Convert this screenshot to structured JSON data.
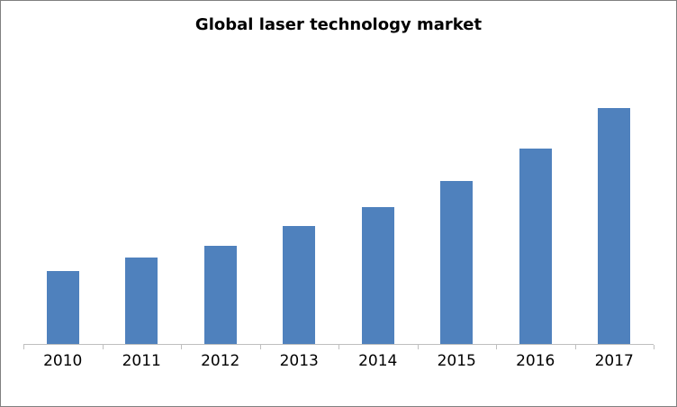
{
  "colors": {
    "bar": "#4F81BD",
    "axis": "#BFBFBF",
    "frame_border": "#808080",
    "title_text": "#000000"
  },
  "chart_data": {
    "type": "bar",
    "title": "Global laser technology market",
    "categories": [
      "2010",
      "2011",
      "2012",
      "2013",
      "2014",
      "2015",
      "2016",
      "2017"
    ],
    "values": [
      31,
      37,
      42,
      50,
      58,
      69,
      83,
      100
    ],
    "xlabel": "",
    "ylabel": "",
    "ylim": [
      0,
      130
    ],
    "y_axis_visible": false,
    "grid": false,
    "legend": false,
    "series_name": ""
  }
}
